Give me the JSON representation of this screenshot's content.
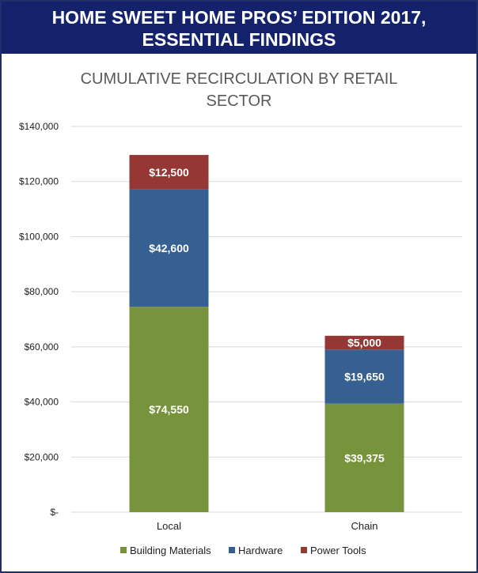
{
  "banner": {
    "line1": "HOME SWEET HOME PROS’ EDITION 2017,",
    "line2": "ESSENTIAL FINDINGS"
  },
  "chart_data": {
    "type": "bar",
    "stacked": true,
    "title_lines": [
      "CUMULATIVE RECIRCULATION BY RETAIL",
      "SECTOR"
    ],
    "categories": [
      "Local",
      "Chain"
    ],
    "series": [
      {
        "name": "Building Materials",
        "color": "#77933c",
        "values": [
          74550,
          39375
        ],
        "labels": [
          "$74,550",
          "$39,375"
        ]
      },
      {
        "name": "Hardware",
        "color": "#376092",
        "values": [
          42600,
          19650
        ],
        "labels": [
          "$42,600",
          "$19,650"
        ]
      },
      {
        "name": "Power Tools",
        "color": "#953735",
        "values": [
          12500,
          5000
        ],
        "labels": [
          "$12,500",
          "$5,000"
        ]
      }
    ],
    "ylim": [
      0,
      140000
    ],
    "yticks": [
      0,
      20000,
      40000,
      60000,
      80000,
      100000,
      120000,
      140000
    ],
    "ytick_labels": [
      "$-",
      "$20,000",
      "$40,000",
      "$60,000",
      "$80,000",
      "$100,000",
      "$120,000",
      "$140,000"
    ],
    "grid": true,
    "legend_position": "bottom"
  }
}
